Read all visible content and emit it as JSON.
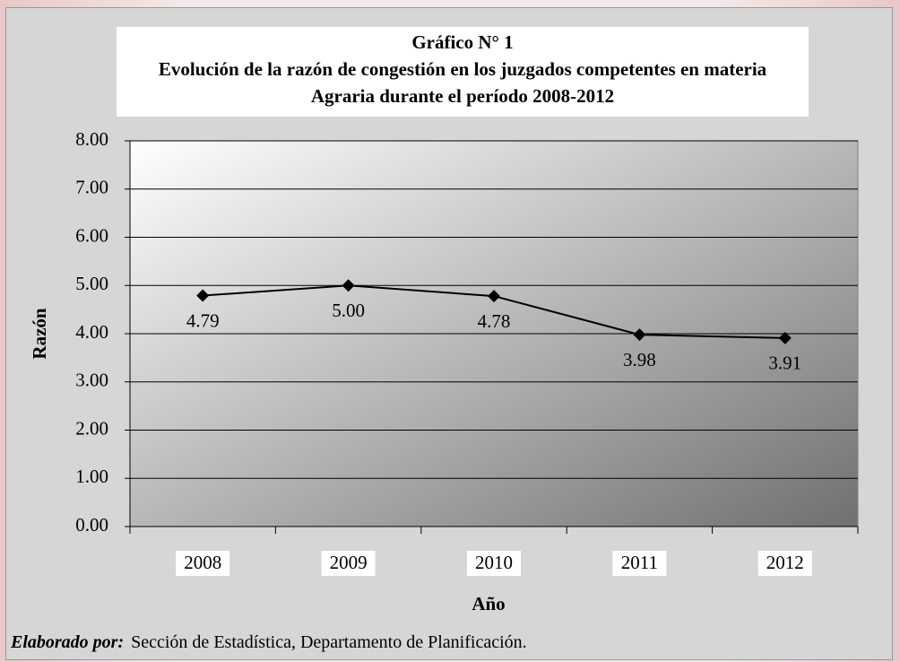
{
  "chart_data": {
    "type": "line",
    "title": "Gráfico N° 1",
    "subtitle": "Evolución de la razón de congestión en los juzgados competentes en materia Agraria durante el período 2008-2012",
    "x_label": "Año",
    "y_label": "Razón",
    "categories": [
      "2008",
      "2009",
      "2010",
      "2011",
      "2012"
    ],
    "values": [
      4.79,
      5.0,
      4.78,
      3.98,
      3.91
    ],
    "value_labels": [
      "4.79",
      "5.00",
      "4.78",
      "3.98",
      "3.91"
    ],
    "color": "#000000",
    "ylim": [
      0,
      8
    ],
    "yticks": [
      {
        "value": 0,
        "label": "0.00"
      },
      {
        "value": 1,
        "label": "1.00"
      },
      {
        "value": 2,
        "label": "2.00"
      },
      {
        "value": 3,
        "label": "3.00"
      },
      {
        "value": 4,
        "label": "4.00"
      },
      {
        "value": 5,
        "label": "5.00"
      },
      {
        "value": 6,
        "label": "6.00"
      },
      {
        "value": 7,
        "label": "7.00"
      },
      {
        "value": 8,
        "label": "8.00"
      }
    ],
    "grid": true,
    "footer": {
      "label": "Elaborado por:",
      "text": "Sección de Estadística, Departamento de Planificación."
    }
  }
}
